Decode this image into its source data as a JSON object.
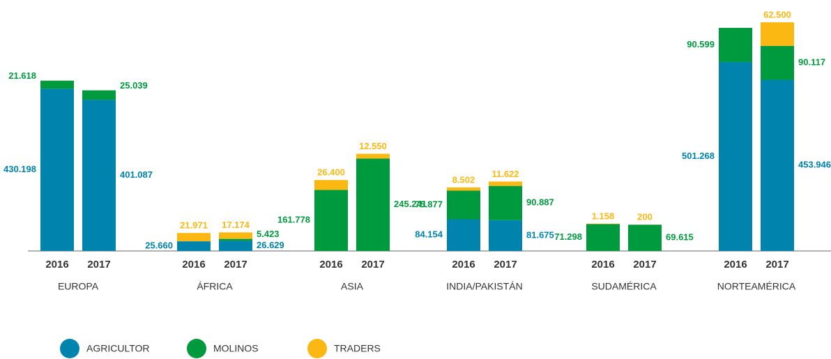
{
  "chart_data": {
    "type": "bar",
    "stacked": true,
    "groups": [
      "EUROPA",
      "ÁFRICA",
      "ASIA",
      "INDIA/PAKISTÁN",
      "SUDAMÉRICA",
      "NORTEAMÉRICA"
    ],
    "categories": [
      "2016",
      "2017",
      "2016",
      "2017",
      "2016",
      "2017",
      "2016",
      "2017",
      "2016",
      "2017",
      "2016",
      "2017"
    ],
    "series": [
      {
        "name": "AGRICULTOR",
        "color": "#0083ad",
        "values": [
          430198,
          401087,
          25660,
          26629,
          null,
          null,
          84154,
          81675,
          null,
          null,
          501268,
          453946
        ],
        "value_labels": [
          "430.198",
          "401.087",
          "25.660",
          "26.629",
          null,
          null,
          "84.154",
          "81.675",
          null,
          null,
          "501.268",
          "453.946"
        ]
      },
      {
        "name": "MOLINOS",
        "color": "#009a3e",
        "values": [
          21618,
          25039,
          null,
          5423,
          161778,
          245241,
          75877,
          90887,
          71298,
          69615,
          90599,
          90117
        ],
        "value_labels": [
          "21.618",
          "25.039",
          null,
          "5.423",
          "161.778",
          "245.241",
          "75.877",
          "90.887",
          "71.298",
          "69.615",
          "90.599",
          "90.117"
        ]
      },
      {
        "name": "TRADERS",
        "color": "#fbb812",
        "values": [
          null,
          null,
          21971,
          17174,
          26400,
          12550,
          8502,
          11622,
          1158,
          200,
          null,
          62500
        ],
        "value_labels": [
          null,
          null,
          "21.971",
          "17.174",
          "26.400",
          "12.550",
          "8.502",
          "11.622",
          "1.158",
          "200",
          null,
          "62.500"
        ]
      }
    ]
  }
}
